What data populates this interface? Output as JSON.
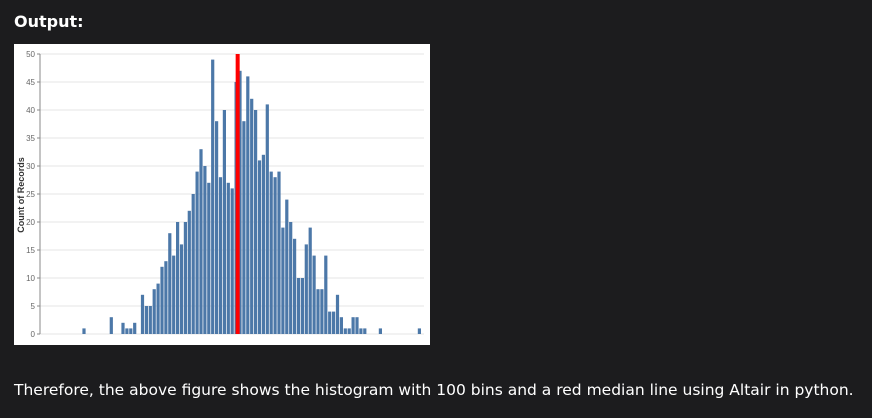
{
  "heading": "Output:",
  "caption": "Therefore, the above figure shows the histogram with 100 bins and a red median line using Altair in python.",
  "chart_data": {
    "type": "histogram",
    "y_label": "Count of Records",
    "values": [
      1,
      0,
      0,
      0,
      0,
      0,
      0,
      3,
      0,
      0,
      2,
      1,
      1,
      2,
      0,
      7,
      5,
      5,
      8,
      9,
      12,
      13,
      18,
      14,
      20,
      16,
      20,
      22,
      25,
      29,
      33,
      30,
      27,
      49,
      38,
      28,
      40,
      27,
      26,
      45,
      47,
      38,
      46,
      42,
      40,
      31,
      32,
      41,
      29,
      28,
      29,
      19,
      24,
      20,
      17,
      10,
      10,
      16,
      19,
      14,
      8,
      8,
      14,
      4,
      4,
      7,
      3,
      1,
      1,
      3,
      3,
      1,
      1,
      0,
      0,
      0,
      1,
      0,
      0,
      0,
      0,
      0,
      0,
      0,
      0,
      0,
      1
    ],
    "color": "#4c78a8",
    "median_line": {
      "x": 39.4,
      "color": "#ff0000"
    },
    "ylim": [
      0,
      50
    ],
    "yticks": [
      0,
      5,
      10,
      15,
      20,
      25,
      30,
      35,
      40,
      45,
      50
    ],
    "grid": true
  }
}
